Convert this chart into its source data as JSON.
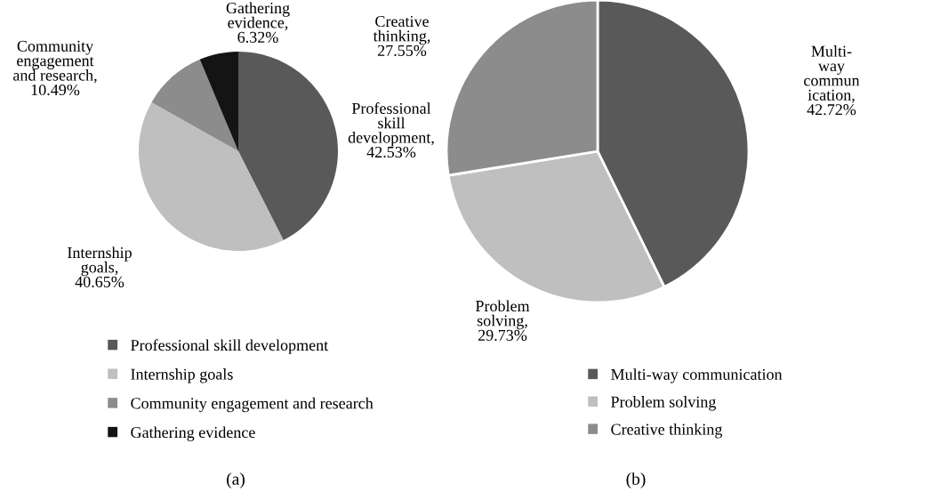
{
  "chart_data": [
    {
      "type": "pie",
      "categories": [
        "Professional skill development",
        "Internship goals",
        "Community engagement and research",
        "Gathering evidence"
      ],
      "values": [
        42.53,
        40.65,
        10.49,
        6.32
      ],
      "colors": [
        "#595959",
        "#bfbfbf",
        "#8c8c8c",
        "#141414"
      ],
      "value_labels": [
        "Professional\nskill\ndevelopment,\n42.53%",
        "Internship\ngoals,\n40.65%",
        "Community\nengagement\nand research,\n10.49%",
        "Gathering\nevidence,\n6.32%"
      ],
      "legend": "bottom",
      "annotations": [
        "(a)"
      ]
    },
    {
      "type": "pie",
      "categories": [
        "Multi-way communication",
        "Problem solving",
        "Creative thinking"
      ],
      "values": [
        42.72,
        29.73,
        27.55
      ],
      "colors": [
        "#595959",
        "#bfbfbf",
        "#8c8c8c"
      ],
      "value_labels": [
        "Multi-\nway\ncommun\nication,\n42.72%",
        "Problem\nsolving,\n29.73%",
        "Creative\nthinking,\n27.55%"
      ],
      "legend": "bottom right",
      "annotations": [
        "(b)"
      ]
    }
  ]
}
